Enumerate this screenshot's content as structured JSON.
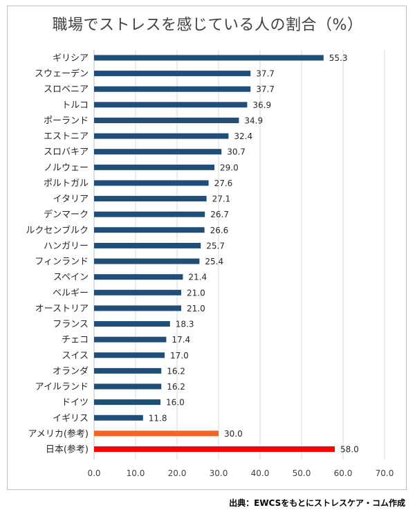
{
  "chart_data": {
    "type": "bar",
    "orientation": "horizontal",
    "title": "職場でストレスを感じている人の割合（%）",
    "categories": [
      "ギリシア",
      "スウェーデン",
      "スロベニア",
      "トルコ",
      "ポーランド",
      "エストニア",
      "スロバキア",
      "ノルウェー",
      "ポルトガル",
      "イタリア",
      "デンマーク",
      "ルクセンブルク",
      "ハンガリー",
      "フィンランド",
      "スペイン",
      "ベルギー",
      "オーストリア",
      "フランス",
      "チェコ",
      "スイス",
      "オランダ",
      "アイルランド",
      "ドイツ",
      "イギリス",
      "アメリカ(参考)",
      "日本(参考)"
    ],
    "values": [
      55.3,
      37.7,
      37.7,
      36.9,
      34.9,
      32.4,
      30.7,
      29.0,
      27.6,
      27.1,
      26.7,
      26.6,
      25.7,
      25.4,
      21.4,
      21.0,
      21.0,
      18.3,
      17.4,
      17.0,
      16.2,
      16.2,
      16.0,
      11.8,
      30.0,
      58.0
    ],
    "value_labels": [
      "55.3",
      "37.7",
      "37.7",
      "36.9",
      "34.9",
      "32.4",
      "30.7",
      "29.0",
      "27.6",
      "27.1",
      "26.7",
      "26.6",
      "25.7",
      "25.4",
      "21.4",
      "21.0",
      "21.0",
      "18.3",
      "17.4",
      "17.0",
      "16.2",
      "16.2",
      "16.0",
      "11.8",
      "30.0",
      "58.0"
    ],
    "bar_colors": [
      "#1f4e79",
      "#1f4e79",
      "#1f4e79",
      "#1f4e79",
      "#1f4e79",
      "#1f4e79",
      "#1f4e79",
      "#1f4e79",
      "#1f4e79",
      "#1f4e79",
      "#1f4e79",
      "#1f4e79",
      "#1f4e79",
      "#1f4e79",
      "#1f4e79",
      "#1f4e79",
      "#1f4e79",
      "#1f4e79",
      "#1f4e79",
      "#1f4e79",
      "#1f4e79",
      "#1f4e79",
      "#1f4e79",
      "#1f4e79",
      "#f26522",
      "#ff0000"
    ],
    "xlim": [
      0,
      70
    ],
    "xticks": [
      0,
      10,
      20,
      30,
      40,
      50,
      60,
      70
    ],
    "xtick_labels": [
      "0.0",
      "10.0",
      "20.0",
      "30.0",
      "40.0",
      "50.0",
      "60.0",
      "70.0"
    ],
    "grid": "vertical",
    "legend": "none"
  },
  "source": "出典：EWCSをもとにストレスケア・コム作成"
}
